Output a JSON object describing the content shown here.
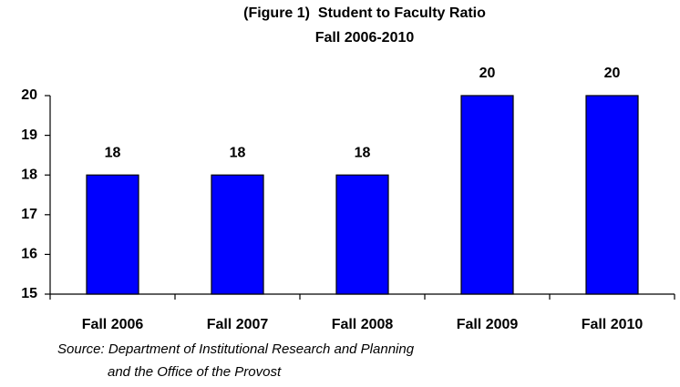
{
  "chart_data": {
    "type": "bar",
    "title": "(Figure 1)  Student to Faculty Ratio",
    "subtitle": "Fall 2006-2010",
    "categories": [
      "Fall 2006",
      "Fall 2007",
      "Fall 2008",
      "Fall 2009",
      "Fall 2010"
    ],
    "values": [
      18,
      18,
      18,
      20,
      20
    ],
    "color": "#0000ff",
    "ylim": [
      15,
      20
    ],
    "yticks": [
      15,
      16,
      17,
      18,
      19,
      20
    ],
    "grid": false,
    "source": [
      "Source: Department of Institutional Research and Planning",
      "and the Office of the Provost"
    ]
  }
}
